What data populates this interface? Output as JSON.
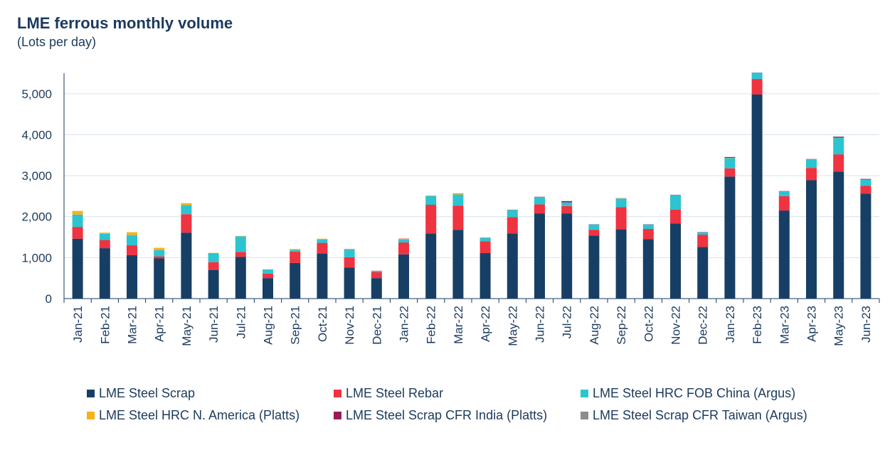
{
  "title": "LME ferrous monthly volume",
  "subtitle": "(Lots per day)",
  "chart_data": {
    "type": "bar",
    "stacked": true,
    "title": "LME ferrous monthly volume",
    "subtitle": "(Lots per day)",
    "ylim": [
      0,
      5500
    ],
    "yticks": [
      0,
      1000,
      2000,
      3000,
      4000,
      5000
    ],
    "ytick_labels": [
      "0",
      "1,000",
      "2,000",
      "3,000",
      "4,000",
      "5,000"
    ],
    "grid": true,
    "legend_position": "bottom",
    "categories": [
      "Jan-21",
      "Feb-21",
      "Mar-21",
      "Apr-21",
      "May-21",
      "Jun-21",
      "Jul-21",
      "Aug-21",
      "Sep-21",
      "Oct-21",
      "Nov-21",
      "Dec-21",
      "Jan-22",
      "Feb-22",
      "Mar-22",
      "Apr-22",
      "May-22",
      "Jun-22",
      "Jul-22",
      "Aug-22",
      "Sep-22",
      "Oct-22",
      "Nov-22",
      "Dec-22",
      "Jan-23",
      "Feb-23",
      "Mar-23",
      "Apr-23",
      "May-23",
      "Jun-23"
    ],
    "series": [
      {
        "name": "LME Steel Scrap",
        "color": "#173f66",
        "values": [
          1460,
          1230,
          1060,
          980,
          1610,
          700,
          1020,
          500,
          870,
          1100,
          760,
          500,
          1080,
          1590,
          1680,
          1110,
          1590,
          2080,
          2080,
          1540,
          1690,
          1450,
          1830,
          1260,
          2980,
          4980,
          2150,
          2890,
          3100,
          2560
        ]
      },
      {
        "name": "LME Steel Rebar",
        "color": "#ef3340",
        "values": [
          290,
          200,
          240,
          50,
          450,
          190,
          120,
          110,
          280,
          260,
          250,
          150,
          290,
          700,
          590,
          290,
          400,
          220,
          180,
          140,
          540,
          250,
          340,
          300,
          200,
          380,
          350,
          300,
          420,
          190
        ]
      },
      {
        "name": "LME Steel HRC FOB China (Argus)",
        "color": "#2cc4d1",
        "values": [
          300,
          150,
          250,
          150,
          220,
          220,
          380,
          100,
          40,
          80,
          180,
          20,
          70,
          210,
          270,
          80,
          170,
          180,
          90,
          130,
          210,
          110,
          360,
          60,
          250,
          150,
          120,
          200,
          400,
          150
        ]
      },
      {
        "name": "LME Steel HRC N. America (Platts)",
        "color": "#f5b21b",
        "values": [
          90,
          30,
          70,
          60,
          50,
          5,
          10,
          5,
          20,
          20,
          5,
          5,
          20,
          5,
          20,
          5,
          5,
          0,
          0,
          0,
          5,
          0,
          0,
          0,
          5,
          0,
          0,
          5,
          5,
          5
        ]
      },
      {
        "name": "LME Steel Scrap CFR India (Platts)",
        "color": "#9b1b5a",
        "values": [
          0,
          0,
          0,
          0,
          0,
          0,
          0,
          0,
          0,
          0,
          10,
          5,
          5,
          5,
          5,
          5,
          5,
          5,
          30,
          5,
          5,
          5,
          5,
          5,
          20,
          5,
          5,
          10,
          25,
          15
        ]
      },
      {
        "name": "LME Steel Scrap CFR Taiwan (Argus)",
        "color": "#8a8d91",
        "values": [
          0,
          0,
          0,
          0,
          0,
          0,
          0,
          0,
          0,
          0,
          0,
          0,
          0,
          0,
          0,
          0,
          0,
          0,
          0,
          0,
          0,
          0,
          0,
          0,
          0,
          0,
          0,
          0,
          5,
          5
        ]
      }
    ]
  }
}
